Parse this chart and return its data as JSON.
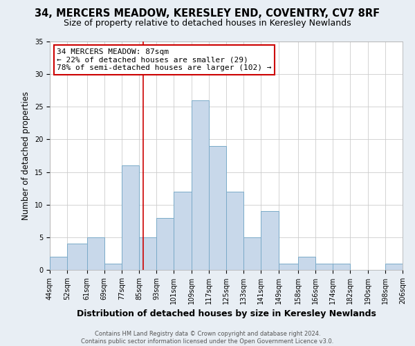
{
  "title": "34, MERCERS MEADOW, KERESLEY END, COVENTRY, CV7 8RF",
  "subtitle": "Size of property relative to detached houses in Keresley Newlands",
  "xlabel": "Distribution of detached houses by size in Keresley Newlands",
  "ylabel": "Number of detached properties",
  "footer_line1": "Contains HM Land Registry data © Crown copyright and database right 2024.",
  "footer_line2": "Contains public sector information licensed under the Open Government Licence v3.0.",
  "bin_edges": [
    44,
    52,
    61,
    69,
    77,
    85,
    93,
    101,
    109,
    117,
    125,
    133,
    141,
    149,
    158,
    166,
    174,
    182,
    190,
    198,
    206
  ],
  "counts": [
    2,
    4,
    5,
    1,
    16,
    5,
    8,
    12,
    26,
    19,
    12,
    5,
    9,
    1,
    2,
    1,
    1,
    0,
    0,
    1
  ],
  "bar_color": "#c8d8ea",
  "bar_edge_color": "#7aaac8",
  "vline_x": 87,
  "vline_color": "#cc0000",
  "annotation_text": "34 MERCERS MEADOW: 87sqm\n← 22% of detached houses are smaller (29)\n78% of semi-detached houses are larger (102) →",
  "annotation_box_color": "#ffffff",
  "annotation_box_edge": "#cc0000",
  "ylim": [
    0,
    35
  ],
  "yticks": [
    0,
    5,
    10,
    15,
    20,
    25,
    30,
    35
  ],
  "background_color": "#e8eef4",
  "plot_bg_color": "#ffffff",
  "title_fontsize": 10.5,
  "subtitle_fontsize": 9,
  "xlabel_fontsize": 9,
  "ylabel_fontsize": 8.5,
  "tick_fontsize": 7,
  "footer_fontsize": 6,
  "annotation_fontsize": 8
}
